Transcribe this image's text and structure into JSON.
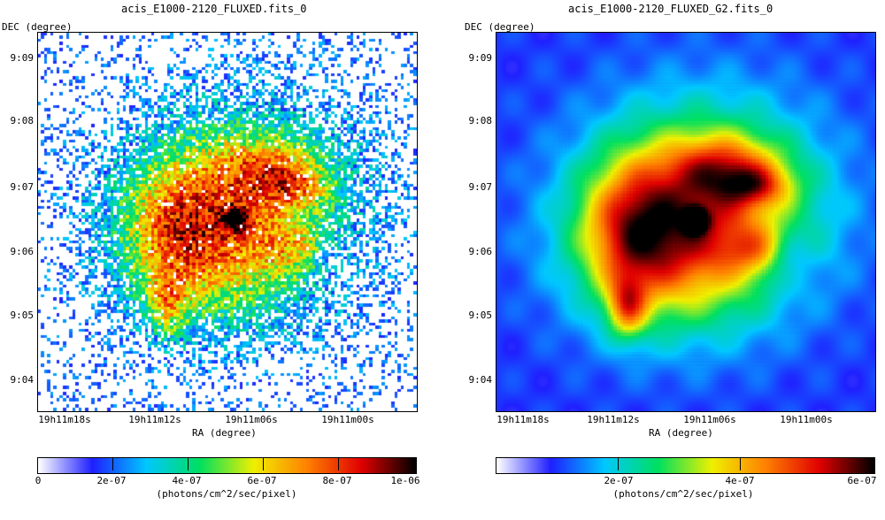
{
  "colormap": [
    "#ffffff",
    "#2020ff",
    "#00c8ff",
    "#00e060",
    "#f0f000",
    "#ff8000",
    "#e00000",
    "#000000"
  ],
  "panels": [
    {
      "id": "left",
      "title": "acis_E1000-2120_FLUXED.fits_0",
      "y_axis_label": "DEC (degree)",
      "x_axis_label": "RA (degree)",
      "y_ticks": [
        "9:09",
        "9:08",
        "9:07",
        "9:06",
        "9:05",
        "9:04"
      ],
      "x_ticks": [
        "19h11m18s",
        "19h11m12s",
        "19h11m06s",
        "19h11m00s"
      ],
      "colorbar_labels": [
        "0",
        "2e-07",
        "4e-07",
        "6e-07",
        "8e-07",
        "1e-06"
      ],
      "colorbar_unit": "(photons/cm^2/sec/pixel)",
      "style": "noisy"
    },
    {
      "id": "right",
      "title": "acis_E1000-2120_FLUXED_G2.fits_0",
      "y_axis_label": "DEC (degree)",
      "x_axis_label": "RA (degree)",
      "y_ticks": [
        "9:09",
        "9:08",
        "9:07",
        "9:06",
        "9:05",
        "9:04"
      ],
      "x_ticks": [
        "19h11m18s",
        "19h11m12s",
        "19h11m06s",
        "19h11m00s"
      ],
      "colorbar_labels": [
        "2e-07",
        "4e-07",
        "6e-07"
      ],
      "colorbar_unit": "(photons/cm^2/sec/pixel)",
      "style": "smooth"
    }
  ]
}
